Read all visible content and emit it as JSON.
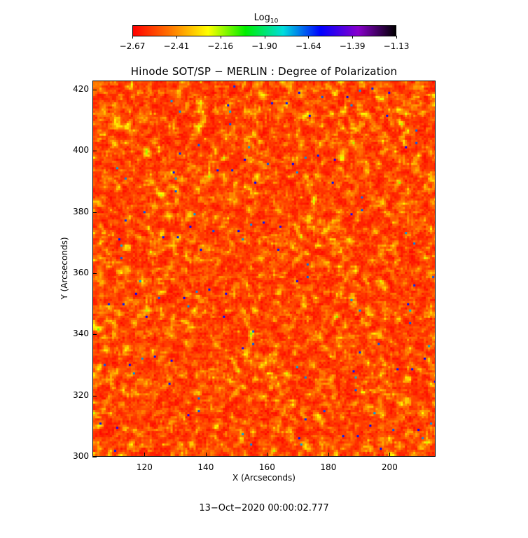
{
  "colorbar": {
    "title_base": "Log",
    "title_sub": "10",
    "tick_labels": [
      "−2.67",
      "−2.41",
      "−2.16",
      "−1.90",
      "−1.64",
      "−1.39",
      "−1.13"
    ],
    "range": [
      -2.67,
      -1.13
    ],
    "colormap": [
      "#ff0000",
      "#ff7700",
      "#ffff00",
      "#00ee00",
      "#00dddd",
      "#0000ff",
      "#8800cc",
      "#000000"
    ]
  },
  "chart_data": {
    "type": "heatmap",
    "title": "Hinode SOT/SP − MERLIN : Degree of Polarization",
    "xlabel": "X (Arcseconds)",
    "ylabel": "Y (Arcseconds)",
    "xlim": [
      103,
      215
    ],
    "ylim": [
      300,
      423
    ],
    "xticks": [
      120,
      140,
      160,
      180,
      200
    ],
    "yticks": [
      300,
      320,
      340,
      360,
      380,
      400,
      420
    ],
    "value_scale": "log10",
    "value_range": [
      -2.67,
      -1.13
    ]
  },
  "timestamp": "13−Oct−2020 00:00:02.777"
}
